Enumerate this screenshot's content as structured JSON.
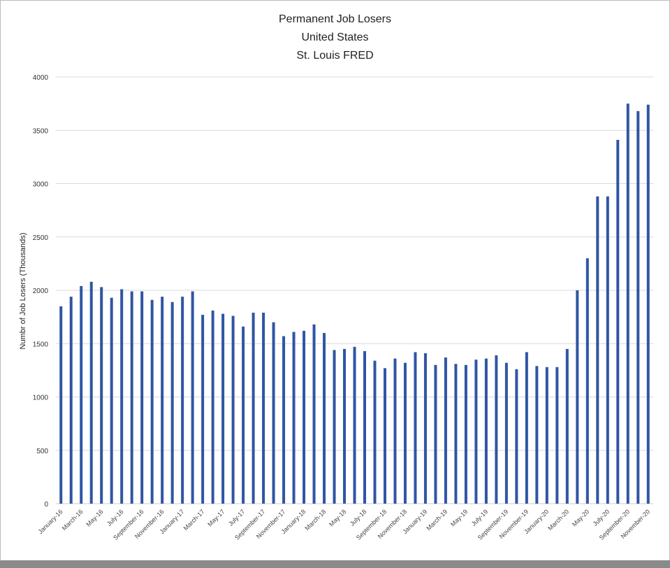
{
  "chart_data": {
    "type": "bar",
    "title": [
      "Permanent Job Losers",
      "United States",
      "St. Louis FRED"
    ],
    "xlabel": "",
    "ylabel": "Numbr of Job Losers (Thousands)",
    "ylim": [
      0,
      4000
    ],
    "yticks": [
      0,
      500,
      1000,
      1500,
      2000,
      2500,
      3000,
      3500,
      4000
    ],
    "grid": true,
    "legend": "none",
    "bar_color": "#2f55a4",
    "categories": [
      "January-16",
      "February-16",
      "March-16",
      "April-16",
      "May-16",
      "June-16",
      "July-16",
      "August-16",
      "September-16",
      "October-16",
      "November-16",
      "December-16",
      "January-17",
      "February-17",
      "March-17",
      "April-17",
      "May-17",
      "June-17",
      "July-17",
      "August-17",
      "September-17",
      "October-17",
      "November-17",
      "December-17",
      "January-18",
      "February-18",
      "March-18",
      "April-18",
      "May-18",
      "June-18",
      "July-18",
      "August-18",
      "September-18",
      "October-18",
      "November-18",
      "December-18",
      "January-19",
      "February-19",
      "March-19",
      "April-19",
      "May-19",
      "June-19",
      "July-19",
      "August-19",
      "September-19",
      "October-19",
      "November-19",
      "December-19",
      "January-20",
      "February-20",
      "March-20",
      "April-20",
      "May-20",
      "June-20",
      "July-20",
      "August-20",
      "September-20",
      "October-20",
      "November-20"
    ],
    "values": [
      1850,
      1940,
      2040,
      2080,
      2030,
      1930,
      2010,
      1990,
      1990,
      1910,
      1940,
      1890,
      1940,
      1990,
      1770,
      1810,
      1780,
      1760,
      1660,
      1790,
      1790,
      1700,
      1570,
      1610,
      1620,
      1680,
      1600,
      1440,
      1450,
      1470,
      1430,
      1340,
      1270,
      1360,
      1320,
      1420,
      1410,
      1300,
      1370,
      1310,
      1300,
      1350,
      1360,
      1390,
      1320,
      1260,
      1420,
      1290,
      1280,
      1280,
      1450,
      2000,
      2300,
      2880,
      2880,
      3410,
      3750,
      3680,
      3740
    ]
  }
}
